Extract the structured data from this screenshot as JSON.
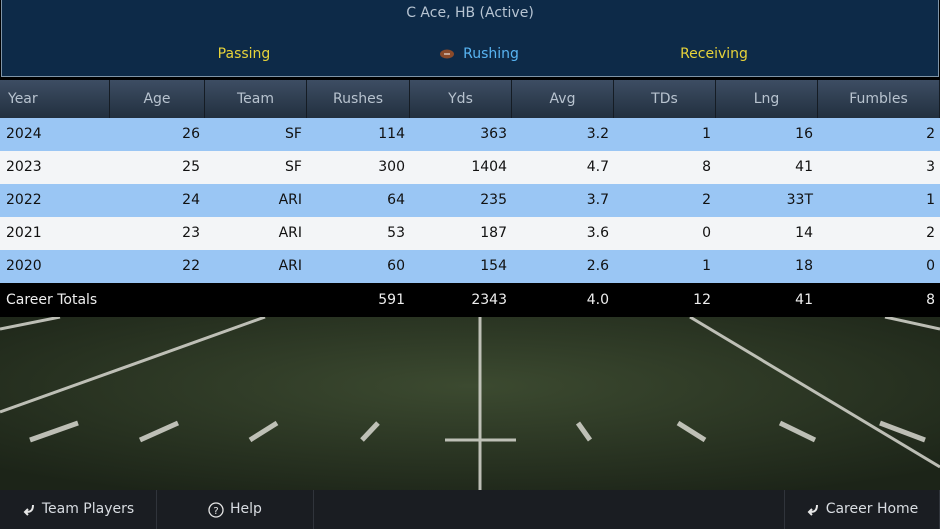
{
  "header": {
    "title": "C Ace, HB (Active)",
    "tabs": [
      "Passing",
      "Rushing",
      "Receiving"
    ]
  },
  "table": {
    "columns": [
      "Year",
      "Age",
      "Team",
      "Rushes",
      "Yds",
      "Avg",
      "TDs",
      "Lng",
      "Fumbles"
    ],
    "rows": [
      [
        2024,
        26,
        "SF",
        114,
        363,
        3.2,
        1,
        16,
        2
      ],
      [
        2023,
        25,
        "SF",
        300,
        1404,
        4.7,
        8,
        41,
        3
      ],
      [
        2022,
        24,
        "ARI",
        64,
        235,
        3.7,
        2,
        "33T",
        1
      ],
      [
        2021,
        23,
        "ARI",
        53,
        187,
        3.6,
        0,
        14,
        2
      ],
      [
        2020,
        22,
        "ARI",
        60,
        154,
        2.6,
        1,
        18,
        0
      ]
    ],
    "totals": {
      "label": "Career Totals",
      "rushes": 591,
      "yds": 2343,
      "avg": "4.0",
      "tds": 12,
      "lng": 41,
      "fumbles": 8
    }
  },
  "footer": {
    "buttons": [
      "Team Players",
      "Help",
      "Career Home"
    ]
  }
}
